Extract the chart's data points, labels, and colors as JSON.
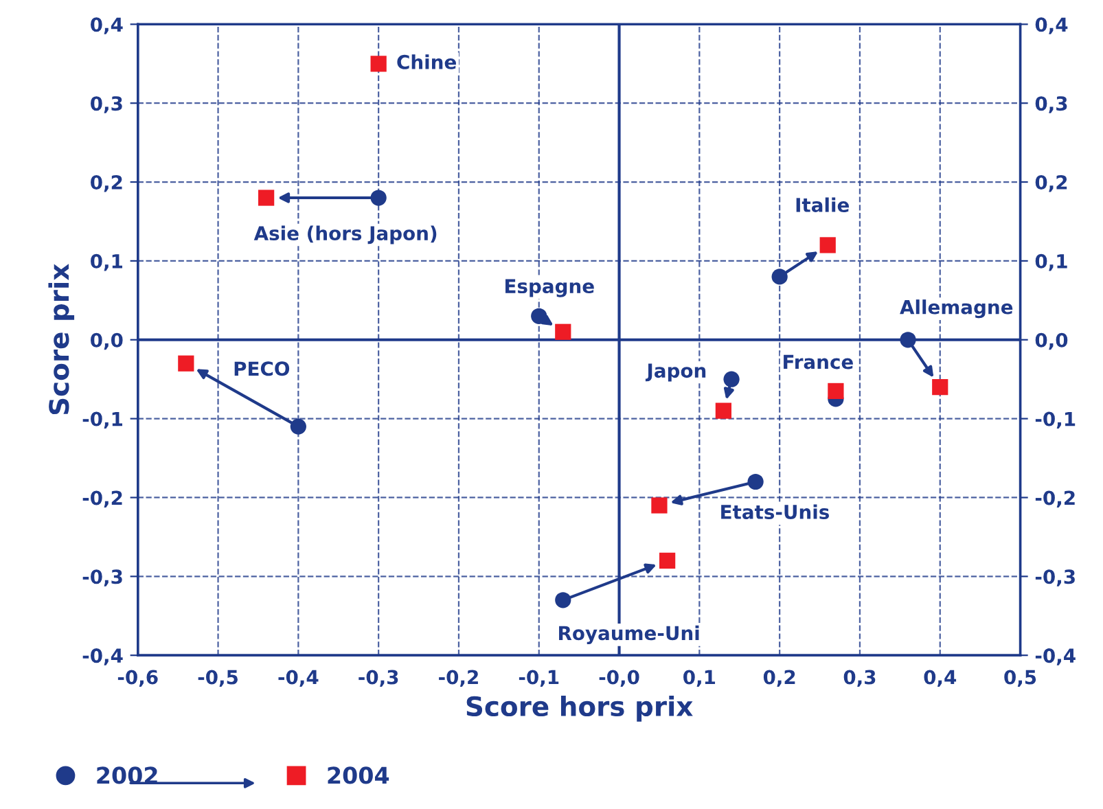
{
  "chart_data": {
    "type": "scatter",
    "xlabel": "Score hors prix",
    "ylabel": "Score prix",
    "xlim": [
      -0.6,
      0.5
    ],
    "xticks": [
      {
        "value": -0.6,
        "label": "-0,6"
      },
      {
        "value": -0.5,
        "label": "-0,5"
      },
      {
        "value": -0.4,
        "label": "-0,4"
      },
      {
        "value": -0.3,
        "label": "-0,3"
      },
      {
        "value": -0.2,
        "label": "-0,2"
      },
      {
        "value": -0.1,
        "label": "-0,1"
      },
      {
        "value": 0,
        "label": "-0,0"
      },
      {
        "value": 0.1,
        "label": "0,1"
      },
      {
        "value": 0.2,
        "label": "0,2"
      },
      {
        "value": 0.3,
        "label": "0,3"
      },
      {
        "value": 0.4,
        "label": "0,4"
      },
      {
        "value": 0.5,
        "label": "0,5"
      }
    ],
    "ylim": [
      -0.4,
      0.4
    ],
    "yticks": [
      {
        "value": -0.4,
        "label": "-0,4"
      },
      {
        "value": -0.3,
        "label": "-0,3"
      },
      {
        "value": -0.2,
        "label": "-0,2"
      },
      {
        "value": -0.1,
        "label": "-0,1"
      },
      {
        "value": 0,
        "label": "0,0"
      },
      {
        "value": 0.1,
        "label": "0,1"
      },
      {
        "value": 0.2,
        "label": "0,2"
      },
      {
        "value": 0.3,
        "label": "0,3"
      },
      {
        "value": 0.4,
        "label": "0,4"
      }
    ],
    "y2lim": [
      -0.4,
      0.4
    ],
    "y2ticks": [
      {
        "value": -0.4,
        "label": "-0,4"
      },
      {
        "value": -0.3,
        "label": "-0,3"
      },
      {
        "value": -0.2,
        "label": "-0,2"
      },
      {
        "value": -0.1,
        "label": "-0,1"
      },
      {
        "value": 0,
        "label": "0,0"
      },
      {
        "value": 0.1,
        "label": "0,1"
      },
      {
        "value": 0.2,
        "label": "0,2"
      },
      {
        "value": 0.3,
        "label": "0,3"
      },
      {
        "value": 0.4,
        "label": "0,4"
      }
    ],
    "grid": true,
    "legend": "bottom left",
    "series": [
      {
        "name": "2002",
        "color": "#1f3a8a",
        "marker": "circle",
        "x": [
          null,
          -0.3,
          -0.1,
          -0.4,
          0.2,
          0.36,
          0.14,
          0.27,
          0.17,
          -0.07
        ],
        "values": [
          null,
          0.18,
          0.03,
          -0.11,
          0.08,
          0.0,
          -0.05,
          -0.075,
          -0.18,
          -0.33
        ]
      },
      {
        "name": "2004",
        "color": "#ee1c25",
        "marker": "square",
        "x": [
          -0.3,
          -0.44,
          -0.07,
          -0.54,
          0.26,
          0.4,
          0.13,
          0.27,
          0.05,
          0.06
        ],
        "values": [
          0.35,
          0.18,
          0.01,
          -0.03,
          0.12,
          -0.06,
          -0.09,
          -0.065,
          -0.21,
          -0.28
        ]
      }
    ],
    "annotations": [
      "Chine",
      "Asie (hors Japon)",
      "Espagne",
      "PECO",
      "Italie",
      "Allemagne",
      "Japon",
      "France",
      "Etats-Unis",
      "Royaume-Uni"
    ]
  }
}
